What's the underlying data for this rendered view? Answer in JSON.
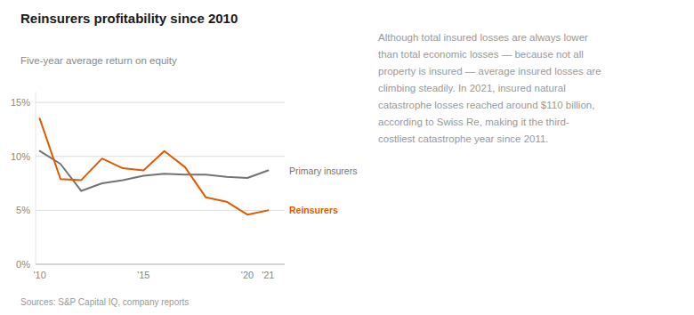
{
  "chart_data": {
    "type": "line",
    "title": "Reinsurers profitability since 2010",
    "subtitle": "Five-year average return on equity",
    "source": "Sources: S&P Capital IQ, company reports",
    "annotation": "Although total insured losses are always lower\nthan total economic losses — because not all\nproperty is insured — average insured losses are\nclimbing steadily. In 2021, insured natural\ncatastrophe losses reached around $110 billion,\naccording to Swiss Re, making it the third-\ncostliest catastrophe year since 2011.",
    "x": [
      2010,
      2011,
      2012,
      2013,
      2014,
      2015,
      2016,
      2017,
      2018,
      2019,
      2020,
      2021
    ],
    "series": [
      {
        "name": "Primary insurers",
        "color": "#737373",
        "values": [
          10.5,
          9.3,
          6.8,
          7.5,
          7.8,
          8.2,
          8.4,
          8.3,
          8.3,
          8.1,
          8.0,
          8.7
        ]
      },
      {
        "name": "Reinsurers",
        "color": "#E05A00",
        "values": [
          13.5,
          7.9,
          7.8,
          9.8,
          8.9,
          8.7,
          10.5,
          9.0,
          6.2,
          5.8,
          4.6,
          5.0
        ]
      }
    ],
    "xlim": [
      2009.8,
      2021.8
    ],
    "xticks": [
      {
        "value": 2010,
        "label": "'10"
      },
      {
        "value": 2015,
        "label": "'15"
      },
      {
        "value": 2020,
        "label": "'20"
      },
      {
        "value": 2021,
        "label": "'21"
      }
    ],
    "ylim": [
      0,
      16
    ],
    "yticks": [
      {
        "value": 0,
        "label": "0%"
      },
      {
        "value": 5,
        "label": "5%"
      },
      {
        "value": 10,
        "label": "10%"
      },
      {
        "value": 15,
        "label": "15%"
      }
    ],
    "grid": true
  }
}
